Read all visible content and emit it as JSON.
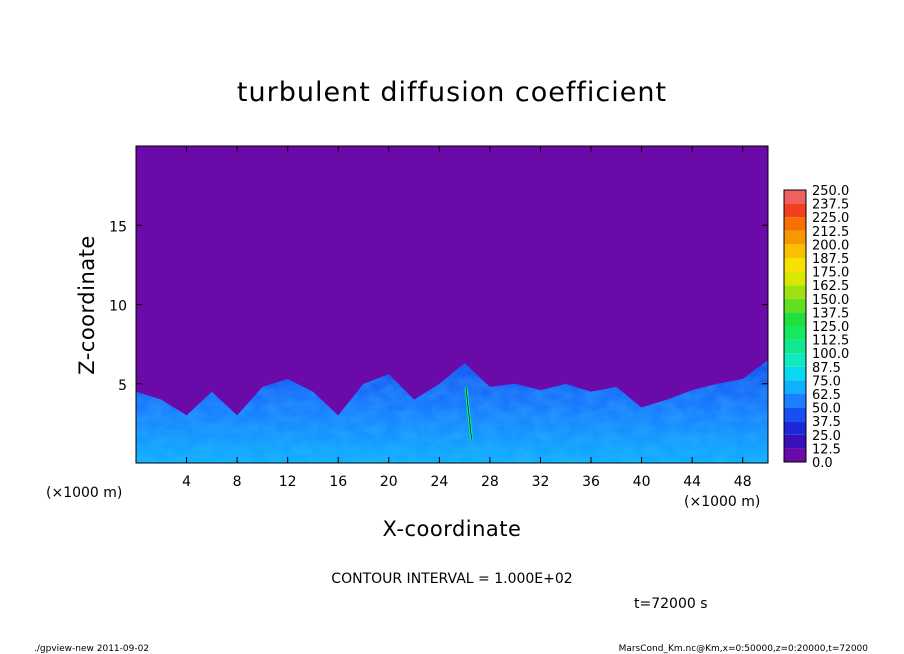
{
  "chart_data": {
    "type": "heatmap",
    "title": "turbulent diffusion coefficient",
    "xlabel": "X-coordinate",
    "ylabel": "Z-coordinate",
    "x_unit_left": "(×1000 m)",
    "x_unit_right": "(×1000 m)",
    "xlim": [
      0,
      50
    ],
    "ylim": [
      0,
      20
    ],
    "x_ticks": [
      4,
      8,
      12,
      16,
      20,
      24,
      28,
      32,
      36,
      40,
      44,
      48
    ],
    "x_tick_labels": [
      "4",
      "8",
      "12",
      "16",
      "20",
      "24",
      "28",
      "32",
      "36",
      "40",
      "44",
      "48"
    ],
    "y_ticks": [
      5,
      10,
      15
    ],
    "y_tick_labels": [
      "5",
      "10",
      "15"
    ],
    "background_color": "#6a0aa8",
    "colorbar": {
      "levels": [
        "0.0",
        "12.5",
        "25.0",
        "37.5",
        "50.0",
        "62.5",
        "75.0",
        "87.5",
        "100.0",
        "112.5",
        "125.0",
        "137.5",
        "150.0",
        "162.5",
        "175.0",
        "187.5",
        "200.0",
        "212.5",
        "225.0",
        "237.5",
        "250.0"
      ],
      "colors": [
        "#6a0aa8",
        "#3a10b8",
        "#1c28d8",
        "#1650f0",
        "#1a80ff",
        "#10b0ff",
        "#08d8f0",
        "#10e8c0",
        "#10e890",
        "#18e860",
        "#20e040",
        "#60e020",
        "#a0e010",
        "#d8e800",
        "#f8e000",
        "#f8c000",
        "#f89800",
        "#f87000",
        "#f04020",
        "#f06060",
        "#f8a0a0"
      ]
    },
    "boundary_layer_top": [
      [
        0,
        4.5
      ],
      [
        2,
        4.0
      ],
      [
        4,
        3.0
      ],
      [
        6,
        4.5
      ],
      [
        8,
        3.0
      ],
      [
        10,
        4.8
      ],
      [
        12,
        5.3
      ],
      [
        14,
        4.5
      ],
      [
        16,
        3.0
      ],
      [
        18,
        5.0
      ],
      [
        20,
        5.6
      ],
      [
        22,
        4.0
      ],
      [
        24,
        5.0
      ],
      [
        26,
        6.3
      ],
      [
        28,
        4.8
      ],
      [
        30,
        5.0
      ],
      [
        32,
        4.6
      ],
      [
        34,
        5.0
      ],
      [
        36,
        4.5
      ],
      [
        38,
        4.8
      ],
      [
        40,
        3.5
      ],
      [
        42,
        4.0
      ],
      [
        44,
        4.6
      ],
      [
        46,
        5.0
      ],
      [
        48,
        5.3
      ],
      [
        50,
        6.5
      ]
    ],
    "plumes": [
      {
        "x": 26.3,
        "y_bottom": 1.5,
        "y_top": 4.8,
        "value": "62.5-100.0"
      }
    ]
  },
  "contour_interval": "CONTOUR INTERVAL = 1.000E+02",
  "time_label": "t=72000 s",
  "footer_left": "./gpview-new  2011-09-02",
  "footer_right": "MarsCond_Km.nc@Km,x=0:50000,z=0:20000,t=72000"
}
